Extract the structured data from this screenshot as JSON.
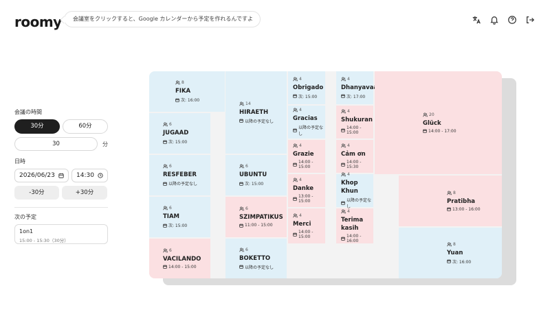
{
  "app": {
    "logo": "roomy",
    "hint": "会議室をクリックすると、Google カレンダーから予定を作れるんですよ"
  },
  "topbar": {
    "icons": [
      "translate-icon",
      "bell-icon",
      "help-icon",
      "logout-icon"
    ]
  },
  "sidebar": {
    "duration_label": "会議の時間",
    "duration_options": [
      "30分",
      "60分"
    ],
    "duration_selected": "30分",
    "custom_minutes": "30",
    "minutes_unit": "分",
    "datetime_label": "日時",
    "date_value": "2026/06/23",
    "time_value": "14:30",
    "minus_button": "-30分",
    "plus_button": "+30分",
    "next_label": "次の予定",
    "next_event": {
      "title": "1on1",
      "time": "15:00 - 15:30（30分）"
    }
  },
  "colors": {
    "available": "#e0f0f8",
    "busy": "#fbe0e2",
    "active": "#1f1f1f"
  },
  "rooms": [
    {
      "id": "fika",
      "capacity": "8",
      "name": "FIKA",
      "status": "次: 16:00",
      "state": "available"
    },
    {
      "id": "jugaad",
      "capacity": "6",
      "name": "JUGAAD",
      "status": "次: 15:00",
      "state": "available"
    },
    {
      "id": "resfeber",
      "capacity": "6",
      "name": "RESFEBER",
      "status": "以降の予定なし",
      "state": "available"
    },
    {
      "id": "tiam",
      "capacity": "6",
      "name": "TIAM",
      "status": "次: 15:00",
      "state": "available"
    },
    {
      "id": "vacilando",
      "capacity": "6",
      "name": "VACILANDO",
      "status": "14:00 - 15:00",
      "state": "busy"
    },
    {
      "id": "hiraeth",
      "capacity": "14",
      "name": "HIRAETH",
      "status": "以降の予定なし",
      "state": "available"
    },
    {
      "id": "ubuntu",
      "capacity": "6",
      "name": "UBUNTU",
      "status": "次: 15:00",
      "state": "available"
    },
    {
      "id": "szimpatikus",
      "capacity": "6",
      "name": "SZIMPATIKUS",
      "status": "11:00 - 15:00",
      "state": "busy"
    },
    {
      "id": "boketto",
      "capacity": "6",
      "name": "BOKETTO",
      "status": "以降の予定なし",
      "state": "available"
    },
    {
      "id": "obrigado",
      "capacity": "4",
      "name": "Obrigado",
      "status": "次: 15:00",
      "state": "available"
    },
    {
      "id": "gracias",
      "capacity": "4",
      "name": "Gracias",
      "status": "以降の予定なし",
      "state": "available"
    },
    {
      "id": "grazie",
      "capacity": "4",
      "name": "Grazie",
      "status": "14:00 - 15:00",
      "state": "busy"
    },
    {
      "id": "danke",
      "capacity": "4",
      "name": "Danke",
      "status": "13:00 - 15:00",
      "state": "busy"
    },
    {
      "id": "merci",
      "capacity": "4",
      "name": "Merci",
      "status": "14:00 - 15:00",
      "state": "busy"
    },
    {
      "id": "dhanyavaad",
      "capacity": "4",
      "name": "Dhanyavaad",
      "status": "次: 17:00",
      "state": "available"
    },
    {
      "id": "shukuran",
      "capacity": "4",
      "name": "Shukuran",
      "status": "14:00 - 15:00",
      "state": "busy"
    },
    {
      "id": "camon",
      "capacity": "4",
      "name": "Cảm ơn",
      "status": "14:00 - 15:30",
      "state": "busy"
    },
    {
      "id": "khopkhun",
      "capacity": "4",
      "name": "Khop Khun",
      "status": "以降の予定なし",
      "state": "available"
    },
    {
      "id": "terimakasih",
      "capacity": "4",
      "name": "Terima kasih",
      "status": "14:00 - 16:00",
      "state": "busy"
    },
    {
      "id": "gluck",
      "capacity": "20",
      "name": "Glück",
      "status": "14:00 - 17:00",
      "state": "busy"
    },
    {
      "id": "pratibha",
      "capacity": "8",
      "name": "Pratibha",
      "status": "13:00 - 16:00",
      "state": "busy"
    },
    {
      "id": "yuan",
      "capacity": "8",
      "name": "Yuan",
      "status": "次: 16:00",
      "state": "available"
    }
  ]
}
